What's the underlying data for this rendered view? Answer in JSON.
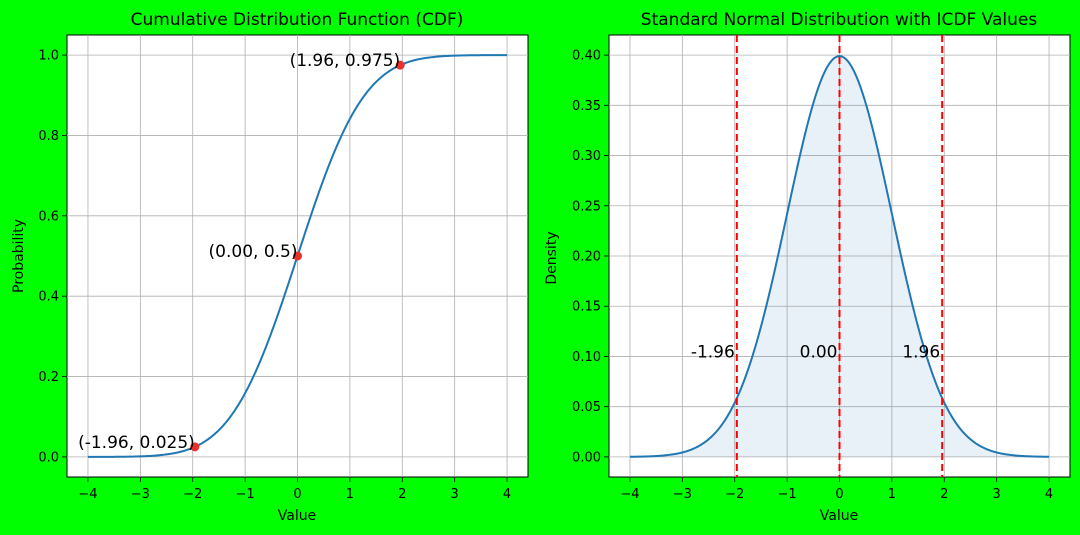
{
  "chart_data": [
    {
      "type": "line",
      "title": "Cumulative Distribution Function (CDF)",
      "xlabel": "Value",
      "ylabel": "Probability",
      "xlim": [
        -4.4,
        4.4
      ],
      "ylim": [
        -0.05,
        1.05
      ],
      "xticks": [
        "−4",
        "−3",
        "−2",
        "−1",
        "0",
        "1",
        "2",
        "3",
        "4"
      ],
      "yticks": [
        "0.0",
        "0.2",
        "0.4",
        "0.6",
        "0.8",
        "1.0"
      ],
      "grid": true,
      "curve": "standard normal CDF",
      "x_range": [
        -4,
        4
      ],
      "points": [
        {
          "x": -1.96,
          "y": 0.025,
          "label": "(-1.96, 0.025)"
        },
        {
          "x": 0.0,
          "y": 0.5,
          "label": "(0.00, 0.5)"
        },
        {
          "x": 1.96,
          "y": 0.975,
          "label": "(1.96, 0.975)"
        }
      ],
      "line_color": "#1f77b4",
      "point_color": "#e8312a"
    },
    {
      "type": "area",
      "title": "Standard Normal Distribution with ICDF Values",
      "xlabel": "Value",
      "ylabel": "Density",
      "xlim": [
        -4.4,
        4.4
      ],
      "ylim": [
        -0.02,
        0.42
      ],
      "xticks": [
        "−4",
        "−3",
        "−2",
        "−1",
        "0",
        "1",
        "2",
        "3",
        "4"
      ],
      "yticks": [
        "0.00",
        "0.05",
        "0.10",
        "0.15",
        "0.20",
        "0.25",
        "0.30",
        "0.35",
        "0.40"
      ],
      "grid": true,
      "curve": "standard normal PDF",
      "x_range": [
        -4,
        4
      ],
      "vlines": [
        {
          "x": -1.96,
          "label": "-1.96"
        },
        {
          "x": 0.0,
          "label": "0.00"
        },
        {
          "x": 1.96,
          "label": "1.96"
        }
      ],
      "vline_label_y": 0.1,
      "line_color": "#1f77b4",
      "vline_color": "#ff0000"
    }
  ]
}
